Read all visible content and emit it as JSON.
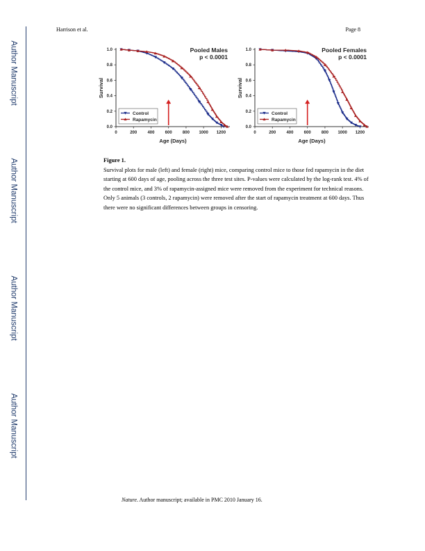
{
  "running_head": {
    "author": "Harrison et al.",
    "page": "Page 8"
  },
  "sidebar_label": "Author Manuscript",
  "figure": {
    "caption_title": "Figure 1.",
    "caption_text": "Survival plots for male (left) and female (right) mice, comparing control mice to those fed rapamycin in the diet starting at 600 days of age, pooling across the three test sites. P-values were calculated by the log-rank test. 4% of the control mice, and 3% of rapamycin-assigned mice were removed from the experiment for technical reasons. Only 5 animals (3 controls, 2 rapamycin) were removed after the start of rapamycin treatment at 600 days. Thus there were no significant differences between groups in censoring."
  },
  "footer": {
    "journal": "Nature",
    "text": ". Author manuscript; available in PMC 2010 January 16."
  },
  "chart_data": [
    {
      "type": "line",
      "title": "Pooled Males",
      "subtitle": "p < 0.0001",
      "xlabel": "Age (Days)",
      "ylabel": "Survival",
      "xlim": [
        0,
        1300
      ],
      "ylim": [
        0,
        1.0
      ],
      "x_ticks": [
        "0",
        "200",
        "400",
        "600",
        "800",
        "1000",
        "1200"
      ],
      "y_ticks": [
        "0.0",
        "0.2",
        "0.4",
        "0.6",
        "0.8",
        "1.0"
      ],
      "legend_position": "bottom-left",
      "annotation": {
        "type": "arrow",
        "x": 600,
        "color": "#d42020"
      },
      "series": [
        {
          "name": "Control",
          "color": "#1b2c8a",
          "marker": "triangle-down",
          "x": [
            60,
            150,
            250,
            350,
            450,
            550,
            650,
            750,
            850,
            950,
            1050,
            1100,
            1150,
            1200,
            1230
          ],
          "y": [
            1.0,
            0.99,
            0.98,
            0.95,
            0.9,
            0.83,
            0.75,
            0.63,
            0.48,
            0.32,
            0.16,
            0.1,
            0.05,
            0.02,
            0.0
          ]
        },
        {
          "name": "Rapamycin",
          "color": "#a81f1f",
          "marker": "triangle-up",
          "x": [
            60,
            150,
            250,
            350,
            450,
            550,
            650,
            750,
            850,
            950,
            1050,
            1100,
            1150,
            1200,
            1240,
            1270
          ],
          "y": [
            1.0,
            0.99,
            0.98,
            0.97,
            0.95,
            0.91,
            0.85,
            0.76,
            0.65,
            0.5,
            0.32,
            0.22,
            0.13,
            0.06,
            0.02,
            0.0
          ]
        }
      ]
    },
    {
      "type": "line",
      "title": "Pooled Females",
      "subtitle": "p < 0.0001",
      "xlabel": "Age (Days)",
      "ylabel": "Survival",
      "xlim": [
        0,
        1300
      ],
      "ylim": [
        0,
        1.0
      ],
      "x_ticks": [
        "0",
        "200",
        "400",
        "600",
        "800",
        "1000",
        "1200"
      ],
      "y_ticks": [
        "0.0",
        "0.2",
        "0.4",
        "0.6",
        "0.8",
        "1.0"
      ],
      "legend_position": "bottom-left",
      "annotation": {
        "type": "arrow",
        "x": 600,
        "color": "#d42020"
      },
      "series": [
        {
          "name": "Control",
          "color": "#1b2c8a",
          "marker": "triangle-down",
          "x": [
            60,
            200,
            350,
            500,
            600,
            700,
            800,
            850,
            900,
            950,
            1000,
            1050,
            1100,
            1150,
            1200
          ],
          "y": [
            1.0,
            0.99,
            0.98,
            0.97,
            0.95,
            0.88,
            0.72,
            0.6,
            0.45,
            0.3,
            0.18,
            0.1,
            0.05,
            0.02,
            0.0
          ]
        },
        {
          "name": "Rapamycin",
          "color": "#a81f1f",
          "marker": "triangle-up",
          "x": [
            60,
            200,
            350,
            500,
            600,
            700,
            800,
            900,
            1000,
            1050,
            1100,
            1150,
            1200,
            1250,
            1280
          ],
          "y": [
            1.0,
            0.99,
            0.99,
            0.98,
            0.96,
            0.9,
            0.8,
            0.65,
            0.45,
            0.35,
            0.24,
            0.14,
            0.07,
            0.02,
            0.0
          ]
        }
      ]
    }
  ]
}
